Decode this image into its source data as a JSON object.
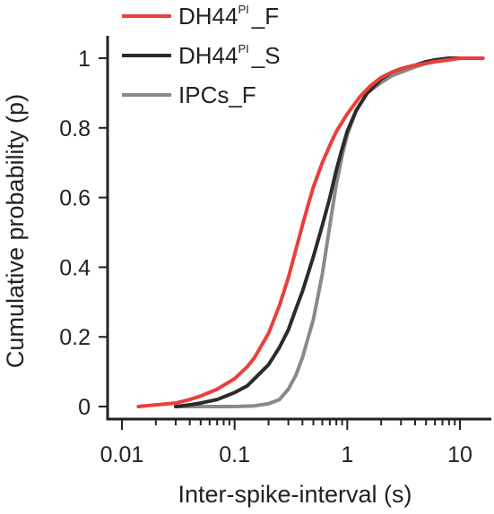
{
  "chart_data": {
    "type": "line",
    "xlabel": "Inter-spike-interval (s)",
    "ylabel": "Cumulative probability (p)",
    "x_scale": "log",
    "xlim": [
      0.01,
      17
    ],
    "ylim": [
      0,
      1
    ],
    "x_ticks": [
      {
        "value": 0.01,
        "label": "0.01"
      },
      {
        "value": 0.1,
        "label": "0.1"
      },
      {
        "value": 1,
        "label": "1"
      },
      {
        "value": 10,
        "label": "10"
      }
    ],
    "y_ticks": [
      {
        "value": 0,
        "label": "0"
      },
      {
        "value": 0.2,
        "label": "0.2"
      },
      {
        "value": 0.4,
        "label": "0.4"
      },
      {
        "value": 0.6,
        "label": "0.6"
      },
      {
        "value": 0.8,
        "label": "0.8"
      },
      {
        "value": 1,
        "label": "1"
      }
    ],
    "grid": false,
    "legend_position": "top-left",
    "series": [
      {
        "name_main": "DH44",
        "name_sup": "PI",
        "name_suffix": "_F",
        "color": "#e8403c",
        "x": [
          0.014,
          0.02,
          0.03,
          0.04,
          0.05,
          0.07,
          0.1,
          0.13,
          0.15,
          0.2,
          0.25,
          0.3,
          0.35,
          0.4,
          0.45,
          0.5,
          0.6,
          0.7,
          0.8,
          1.0,
          1.3,
          1.6,
          2.0,
          2.5,
          3.0,
          4.0,
          5.0,
          6.0,
          8.0,
          10.0,
          13.0,
          16.0
        ],
        "y": [
          0.0,
          0.005,
          0.01,
          0.02,
          0.03,
          0.05,
          0.08,
          0.115,
          0.14,
          0.21,
          0.29,
          0.37,
          0.45,
          0.52,
          0.58,
          0.63,
          0.7,
          0.75,
          0.79,
          0.84,
          0.89,
          0.92,
          0.945,
          0.96,
          0.97,
          0.98,
          0.985,
          0.99,
          0.995,
          1.0,
          1.0,
          1.0
        ]
      },
      {
        "name_main": "DH44",
        "name_sup": "PI",
        "name_suffix": "_S",
        "color": "#2b2b2b",
        "x": [
          0.03,
          0.04,
          0.05,
          0.07,
          0.1,
          0.13,
          0.15,
          0.2,
          0.25,
          0.3,
          0.35,
          0.4,
          0.5,
          0.6,
          0.7,
          0.8,
          0.9,
          1.0,
          1.2,
          1.5,
          2.0,
          2.5,
          3.0,
          4.0,
          5.0,
          6.0,
          8.0,
          10.0
        ],
        "y": [
          0.0,
          0.005,
          0.01,
          0.02,
          0.04,
          0.06,
          0.08,
          0.12,
          0.17,
          0.22,
          0.28,
          0.33,
          0.43,
          0.52,
          0.6,
          0.68,
          0.74,
          0.79,
          0.85,
          0.9,
          0.94,
          0.96,
          0.97,
          0.98,
          0.99,
          0.995,
          1.0,
          1.0
        ]
      },
      {
        "name_main": "IPCs",
        "name_sup": "",
        "name_suffix": "_F",
        "color": "#8a8a8a",
        "x": [
          0.03,
          0.05,
          0.08,
          0.1,
          0.15,
          0.2,
          0.25,
          0.3,
          0.35,
          0.4,
          0.5,
          0.6,
          0.7,
          0.8,
          0.9,
          1.0,
          1.2,
          1.5,
          2.0,
          2.5,
          3.0,
          4.0,
          5.0,
          6.0,
          8.0,
          10.0,
          13.0
        ],
        "y": [
          0.0,
          0.0,
          0.0,
          0.0,
          0.002,
          0.008,
          0.02,
          0.05,
          0.09,
          0.14,
          0.25,
          0.38,
          0.52,
          0.64,
          0.72,
          0.78,
          0.85,
          0.9,
          0.93,
          0.95,
          0.96,
          0.975,
          0.985,
          0.99,
          0.995,
          1.0,
          1.0
        ]
      }
    ]
  }
}
